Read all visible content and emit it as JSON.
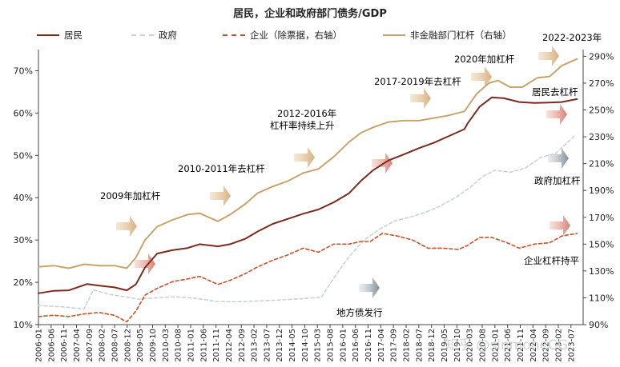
{
  "chart_data": {
    "type": "line",
    "title": "居民，企业和政府部门债务/GDP",
    "legend_position": "top",
    "left_axis": {
      "ylim": [
        10,
        75
      ],
      "ticks": [
        10,
        20,
        30,
        40,
        50,
        60,
        70
      ],
      "tick_labels": [
        "10%",
        "20%",
        "30%",
        "40%",
        "50%",
        "60%",
        "70%"
      ]
    },
    "right_axis": {
      "ylim": [
        90,
        295
      ],
      "ticks": [
        90,
        110,
        130,
        150,
        170,
        190,
        210,
        230,
        250,
        270,
        290
      ],
      "tick_labels": [
        "90%",
        "110%",
        "130%",
        "150%",
        "170%",
        "190%",
        "210%",
        "230%",
        "250%",
        "270%",
        "290%"
      ]
    },
    "x_tick_labels": [
      "2006-01",
      "2006-06",
      "2006-11",
      "2007-04",
      "2007-09",
      "2008-02",
      "2008-07",
      "2008-12",
      "2009-05",
      "2009-10",
      "2010-03",
      "2010-08",
      "2011-01",
      "2011-06",
      "2011-11",
      "2012-04",
      "2012-09",
      "2013-02",
      "2013-07",
      "2013-12",
      "2014-05",
      "2014-10",
      "2015-03",
      "2015-08",
      "2016-01",
      "2016-06",
      "2016-11",
      "2017-04",
      "2017-09",
      "2018-02",
      "2018-07",
      "2018-12",
      "2019-05",
      "2019-10",
      "2020-03",
      "2020-08",
      "2021-01",
      "2021-06",
      "2021-11",
      "2022-04",
      "2022-09",
      "2023-02",
      "2023-07"
    ],
    "series": [
      {
        "name": "居民",
        "axis": "left",
        "color": "#7b2a1e",
        "style": "solid",
        "points": [
          [
            2006.0,
            17.4
          ],
          [
            2006.5,
            18.0
          ],
          [
            2007.0,
            18.1
          ],
          [
            2007.6,
            19.6
          ],
          [
            2008.0,
            19.2
          ],
          [
            2008.5,
            18.8
          ],
          [
            2008.9,
            18.1
          ],
          [
            2009.2,
            19.5
          ],
          [
            2009.5,
            23.5
          ],
          [
            2009.9,
            26.8
          ],
          [
            2010.4,
            27.6
          ],
          [
            2010.9,
            28.1
          ],
          [
            2011.3,
            29.0
          ],
          [
            2011.9,
            28.5
          ],
          [
            2012.3,
            29.0
          ],
          [
            2012.8,
            30.3
          ],
          [
            2013.2,
            32.0
          ],
          [
            2013.7,
            33.8
          ],
          [
            2014.2,
            35.0
          ],
          [
            2014.7,
            36.2
          ],
          [
            2015.2,
            37.2
          ],
          [
            2015.7,
            38.9
          ],
          [
            2016.2,
            41.0
          ],
          [
            2016.6,
            44.0
          ],
          [
            2017.0,
            46.5
          ],
          [
            2017.5,
            48.8
          ],
          [
            2018.0,
            50.2
          ],
          [
            2018.5,
            51.7
          ],
          [
            2019.0,
            53.0
          ],
          [
            2019.5,
            54.6
          ],
          [
            2020.0,
            56.2
          ],
          [
            2020.1,
            57.5
          ],
          [
            2020.5,
            61.5
          ],
          [
            2020.9,
            63.7
          ],
          [
            2021.3,
            63.5
          ],
          [
            2021.8,
            62.6
          ],
          [
            2022.3,
            62.4
          ],
          [
            2022.8,
            62.5
          ],
          [
            2023.2,
            62.6
          ],
          [
            2023.7,
            63.3
          ]
        ]
      },
      {
        "name": "政府",
        "axis": "left",
        "color": "#c9d2dc",
        "style": "dashed",
        "points": [
          [
            2006.0,
            14.5
          ],
          [
            2006.8,
            14.2
          ],
          [
            2007.5,
            13.7
          ],
          [
            2007.8,
            18.2
          ],
          [
            2008.3,
            17.2
          ],
          [
            2008.9,
            16.5
          ],
          [
            2009.3,
            16.0
          ],
          [
            2009.8,
            16.3
          ],
          [
            2010.5,
            16.6
          ],
          [
            2011.2,
            16.2
          ],
          [
            2011.8,
            15.5
          ],
          [
            2012.5,
            15.4
          ],
          [
            2013.2,
            15.6
          ],
          [
            2013.9,
            15.8
          ],
          [
            2014.6,
            16.1
          ],
          [
            2015.3,
            16.5
          ],
          [
            2015.7,
            21.0
          ],
          [
            2016.2,
            26.0
          ],
          [
            2016.7,
            30.0
          ],
          [
            2017.2,
            32.5
          ],
          [
            2017.7,
            34.5
          ],
          [
            2018.2,
            35.4
          ],
          [
            2018.7,
            36.5
          ],
          [
            2019.2,
            38.0
          ],
          [
            2019.7,
            40.0
          ],
          [
            2020.2,
            42.5
          ],
          [
            2020.6,
            45.0
          ],
          [
            2021.0,
            46.5
          ],
          [
            2021.5,
            46.0
          ],
          [
            2022.0,
            47.0
          ],
          [
            2022.5,
            49.5
          ],
          [
            2023.0,
            50.5
          ],
          [
            2023.6,
            54.5
          ]
        ]
      },
      {
        "name": "企业（除票据，右轴）",
        "axis": "right",
        "color": "#c8502a",
        "style": "dashed",
        "points": [
          [
            2006.0,
            96
          ],
          [
            2006.5,
            97
          ],
          [
            2007.0,
            96
          ],
          [
            2007.5,
            98
          ],
          [
            2008.0,
            99
          ],
          [
            2008.5,
            97
          ],
          [
            2008.9,
            92
          ],
          [
            2009.2,
            100
          ],
          [
            2009.5,
            112
          ],
          [
            2009.9,
            117
          ],
          [
            2010.4,
            122
          ],
          [
            2010.9,
            124
          ],
          [
            2011.3,
            126
          ],
          [
            2011.9,
            120
          ],
          [
            2012.3,
            123
          ],
          [
            2012.8,
            128
          ],
          [
            2013.2,
            133
          ],
          [
            2013.7,
            138
          ],
          [
            2014.2,
            142
          ],
          [
            2014.7,
            147
          ],
          [
            2015.2,
            144
          ],
          [
            2015.7,
            150
          ],
          [
            2016.2,
            150
          ],
          [
            2016.6,
            152
          ],
          [
            2016.9,
            152
          ],
          [
            2017.3,
            158
          ],
          [
            2017.8,
            156
          ],
          [
            2018.3,
            153
          ],
          [
            2018.8,
            147
          ],
          [
            2019.3,
            147
          ],
          [
            2019.8,
            146
          ],
          [
            2020.1,
            149
          ],
          [
            2020.5,
            155
          ],
          [
            2020.9,
            155
          ],
          [
            2021.4,
            151
          ],
          [
            2021.8,
            147
          ],
          [
            2022.3,
            150
          ],
          [
            2022.8,
            151
          ],
          [
            2023.2,
            156
          ],
          [
            2023.7,
            158
          ]
        ]
      },
      {
        "name": "非金融部门杠杆（右轴）",
        "axis": "right",
        "color": "#c8a46c",
        "style": "solid",
        "points": [
          [
            2006.0,
            133
          ],
          [
            2006.5,
            134
          ],
          [
            2007.0,
            132
          ],
          [
            2007.5,
            135
          ],
          [
            2008.0,
            134
          ],
          [
            2008.5,
            134
          ],
          [
            2008.9,
            132
          ],
          [
            2009.2,
            140
          ],
          [
            2009.5,
            153
          ],
          [
            2009.9,
            163
          ],
          [
            2010.4,
            168
          ],
          [
            2010.9,
            172
          ],
          [
            2011.3,
            173
          ],
          [
            2011.9,
            167
          ],
          [
            2012.3,
            172
          ],
          [
            2012.8,
            180
          ],
          [
            2013.2,
            188
          ],
          [
            2013.7,
            193
          ],
          [
            2014.2,
            197
          ],
          [
            2014.7,
            203
          ],
          [
            2015.2,
            206
          ],
          [
            2015.7,
            215
          ],
          [
            2016.2,
            226
          ],
          [
            2016.6,
            233
          ],
          [
            2017.0,
            237
          ],
          [
            2017.5,
            241
          ],
          [
            2018.0,
            242
          ],
          [
            2018.5,
            242
          ],
          [
            2019.0,
            244
          ],
          [
            2019.5,
            246
          ],
          [
            2020.0,
            249
          ],
          [
            2020.4,
            262
          ],
          [
            2020.8,
            270
          ],
          [
            2021.1,
            272
          ],
          [
            2021.5,
            267
          ],
          [
            2021.9,
            267
          ],
          [
            2022.4,
            274
          ],
          [
            2022.8,
            275
          ],
          [
            2023.2,
            283
          ],
          [
            2023.7,
            288
          ]
        ]
      }
    ],
    "annotations": [
      {
        "text": "2009年加杠杆",
        "color": "#b0763e"
      },
      {
        "text": "2010-2011年去杠杆",
        "color": "#b0763e"
      },
      {
        "text": "2012-2016年",
        "color": "#b0763e"
      },
      {
        "text": "杠杆率持续上升",
        "color": "#b0763e"
      },
      {
        "text": "2017-2019年去杠杆",
        "color": "#b0763e"
      },
      {
        "text": "2020年加杠杆",
        "color": "#b0763e"
      },
      {
        "text": "2022-2023年",
        "color": "#b0763e"
      },
      {
        "text": "居民去杠杆",
        "color": "#7b2a1e"
      },
      {
        "text": "政府加杠杆",
        "color": "#3d4a5c"
      },
      {
        "text": "企业杠杆持平",
        "color": "#c8502a"
      },
      {
        "text": "地方债发行",
        "color": "#3d4a5c"
      }
    ],
    "watermark": "知乎 @sinmoneCG"
  }
}
